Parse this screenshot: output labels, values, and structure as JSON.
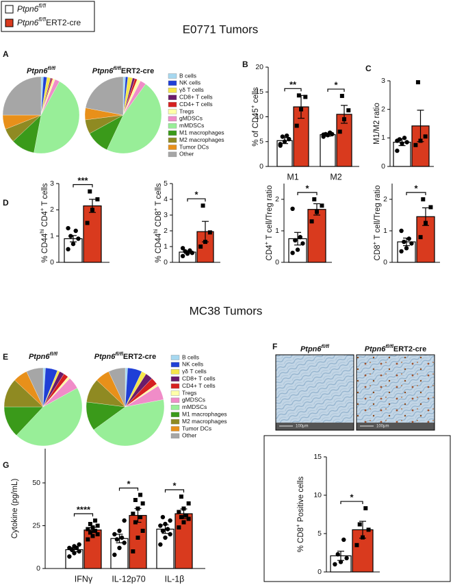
{
  "groups": [
    {
      "parts": [
        "Ptpn6",
        "fl/fl"
      ],
      "color": "#ffffff"
    },
    {
      "parts": [
        "Ptpn6",
        "fl/fl",
        "ERT2-cre"
      ],
      "color": "#d93a1e"
    }
  ],
  "sections": [
    "E0771 Tumors",
    "MC38 Tumors"
  ],
  "chart_data": [
    {
      "type": "pie",
      "panel": "A",
      "categories": [
        "B cells",
        "NK cells",
        "γδ T cells",
        "CD8+ T cells",
        "CD4+ T cells",
        "Tregs",
        "gMDSCs",
        "mMDSCs",
        "M1 macrophages",
        "M2 macrophages",
        "Tumor DCs",
        "Other"
      ],
      "colors": [
        "#a6d8f0",
        "#1f3fd6",
        "#f5e64a",
        "#6a1b6a",
        "#d62020",
        "#ffffa8",
        "#f08cc8",
        "#98ee98",
        "#3a9a1a",
        "#8f8a22",
        "#e8901a",
        "#a6a6a6"
      ],
      "series": [
        {
          "values": [
            1,
            1.5,
            1.5,
            0.5,
            0.5,
            1,
            2,
            45,
            10,
            6,
            6,
            25
          ]
        },
        {
          "values": [
            1,
            1,
            2,
            1,
            1,
            1.5,
            2.5,
            47,
            10,
            6,
            5,
            22
          ]
        }
      ]
    },
    {
      "type": "bar",
      "panel": "B",
      "ylabel": [
        "% of CD45",
        "+",
        " cells"
      ],
      "categories": [
        "M1",
        "M2"
      ],
      "ylim": [
        0,
        20
      ],
      "yticks": [
        0,
        5,
        10,
        15,
        20
      ],
      "annotations": [
        "**",
        "*"
      ],
      "series": [
        {
          "values": [
            5.2,
            6.4
          ],
          "errors": [
            0.6,
            0.3
          ],
          "points": [
            [
              4.2,
              5,
              5.5,
              6,
              6.2,
              4.5
            ],
            [
              6,
              6.3,
              6.5,
              6.5,
              6.8,
              6.4
            ]
          ]
        },
        {
          "values": [
            12,
            10.5
          ],
          "errors": [
            2.3,
            1.8
          ],
          "points": [
            [
              8.2,
              11.5,
              14,
              14.3
            ],
            [
              7,
              9.5,
              11.3,
              14.2
            ]
          ]
        }
      ]
    },
    {
      "type": "bar",
      "panel": "C",
      "ylabel": [
        "M1/M2 ratio"
      ],
      "categories": [
        null
      ],
      "ylim": [
        0,
        3
      ],
      "yticks": [
        0,
        1,
        2,
        3
      ],
      "series": [
        {
          "values": [
            0.85
          ],
          "errors": [
            0.12
          ],
          "points": [
            [
              0.55,
              0.8,
              0.85,
              0.95,
              1.0,
              0.9
            ]
          ]
        },
        {
          "values": [
            1.42
          ],
          "errors": [
            0.55
          ],
          "points": [
            [
              0.75,
              0.9,
              1.05,
              2.95
            ]
          ]
        }
      ]
    },
    {
      "type": "bar",
      "panel": "D",
      "ylabel": [
        "% CD44",
        "hi",
        " CD4",
        "+",
        " T cells"
      ],
      "categories": [
        null
      ],
      "ylim": [
        0,
        3
      ],
      "yticks": [
        0,
        1,
        2,
        3
      ],
      "annotations": [
        "***"
      ],
      "series": [
        {
          "values": [
            0.9
          ],
          "errors": [
            0.12
          ],
          "points": [
            [
              0.5,
              0.7,
              0.9,
              1.0,
              1.2,
              1.3
            ]
          ]
        },
        {
          "values": [
            2.15
          ],
          "errors": [
            0.25
          ],
          "points": [
            [
              1.5,
              2.0,
              2.4,
              2.7
            ]
          ]
        }
      ]
    },
    {
      "type": "bar",
      "ylabel": [
        "% CD44",
        "hi",
        " CD8",
        "+",
        " T cells"
      ],
      "categories": [
        null
      ],
      "ylim": [
        0,
        5
      ],
      "yticks": [
        0,
        1,
        2,
        3,
        4,
        5
      ],
      "annotations": [
        "*"
      ],
      "series": [
        {
          "values": [
            0.65
          ],
          "errors": [
            0.08
          ],
          "points": [
            [
              0.4,
              0.55,
              0.6,
              0.7,
              0.75,
              0.9
            ]
          ]
        },
        {
          "values": [
            1.95
          ],
          "errors": [
            0.65
          ],
          "points": [
            [
              1.0,
              1.3,
              1.9,
              3.6
            ]
          ]
        }
      ]
    },
    {
      "type": "bar",
      "ylabel": [
        "CD4",
        "+",
        " T cell/Treg ratio"
      ],
      "categories": [
        null
      ],
      "ylim": [
        0,
        2.5
      ],
      "yticks": [
        0,
        1,
        2
      ],
      "annotations": [
        "*"
      ],
      "series": [
        {
          "values": [
            0.75
          ],
          "errors": [
            0.2
          ],
          "points": [
            [
              0.3,
              0.4,
              0.6,
              0.7,
              0.8,
              1.7
            ]
          ]
        },
        {
          "values": [
            1.68
          ],
          "errors": [
            0.18
          ],
          "points": [
            [
              1.3,
              1.6,
              1.8,
              2.0
            ]
          ]
        }
      ]
    },
    {
      "type": "bar",
      "ylabel": [
        "CD8",
        "+",
        " T cell/Treg ratio"
      ],
      "categories": [
        null
      ],
      "ylim": [
        0,
        2.5
      ],
      "yticks": [
        0,
        1,
        2
      ],
      "annotations": [
        "*"
      ],
      "series": [
        {
          "values": [
            0.65
          ],
          "errors": [
            0.12
          ],
          "points": [
            [
              0.35,
              0.45,
              0.6,
              0.65,
              0.75,
              1.0
            ]
          ]
        },
        {
          "values": [
            1.45
          ],
          "errors": [
            0.28
          ],
          "points": [
            [
              0.8,
              1.25,
              1.75,
              2.0
            ]
          ]
        }
      ]
    },
    {
      "type": "pie",
      "panel": "E",
      "categories": [
        "B cells",
        "NK cells",
        "γδ T cells",
        "CD8+ T cells",
        "CD4+ T cells",
        "Tregs",
        "gMDSCs",
        "mMDSCs",
        "M1 macrophages",
        "M2 macrophages",
        "Tumor DCs",
        "Other"
      ],
      "colors": [
        "#a6d8f0",
        "#1f3fd6",
        "#f5e64a",
        "#6a1b6a",
        "#d62020",
        "#ffffa8",
        "#f08cc8",
        "#98ee98",
        "#3a9a1a",
        "#8f8a22",
        "#e8901a",
        "#a6a6a6"
      ],
      "series": [
        {
          "values": [
            1,
            5,
            1,
            2,
            2,
            1,
            5,
            45,
            13,
            12,
            6,
            7
          ]
        },
        {
          "values": [
            1,
            6,
            2,
            3,
            3,
            1,
            6,
            43,
            12,
            10,
            6,
            7
          ]
        }
      ]
    },
    {
      "type": "bar",
      "panel": "F",
      "scale_labels": [
        "100μm",
        "100μm"
      ],
      "ylabel": [
        "% CD8",
        "+",
        " Positive cells"
      ],
      "categories": [
        null
      ],
      "ylim": [
        0,
        15
      ],
      "yticks": [
        0,
        5,
        10,
        15
      ],
      "annotations": [
        "*"
      ],
      "series": [
        {
          "values": [
            2.1
          ],
          "errors": [
            0.6
          ],
          "points": [
            [
              1,
              1.3,
              1.8,
              2.3,
              4.2
            ]
          ]
        },
        {
          "values": [
            5.5
          ],
          "errors": [
            1.1
          ],
          "points": [
            [
              3.5,
              4.5,
              5.5,
              6.2,
              8.3
            ]
          ]
        }
      ]
    },
    {
      "type": "bar",
      "panel": "G",
      "ylabel": [
        "Cytokine (pg/mL)"
      ],
      "categories": [
        "IFNγ",
        "IL-12p70",
        "IL-1β"
      ],
      "ylim": [
        0,
        70
      ],
      "yticks": [
        0,
        25,
        50
      ],
      "annotations": [
        "****",
        "*",
        "*"
      ],
      "series": [
        {
          "values": [
            11,
            17.5,
            23
          ],
          "errors": [
            1.2,
            2.5,
            2.5
          ],
          "points": [
            [
              7,
              9,
              10,
              11,
              12,
              12,
              13,
              14
            ],
            [
              8,
              12,
              15,
              17,
              18,
              20,
              22,
              28
            ],
            [
              14,
              18,
              20,
              22,
              23,
              25,
              26,
              28,
              30
            ]
          ]
        },
        {
          "values": [
            22.5,
            31,
            32
          ],
          "errors": [
            1.5,
            4,
            2.8
          ],
          "points": [
            [
              17,
              19,
              20,
              21,
              22,
              23,
              24,
              25,
              26,
              28
            ],
            [
              10,
              18,
              22,
              27,
              30,
              32,
              35,
              38,
              40,
              43
            ],
            [
              24,
              27,
              29,
              30,
              31,
              33,
              35,
              38,
              42
            ]
          ]
        }
      ]
    }
  ]
}
